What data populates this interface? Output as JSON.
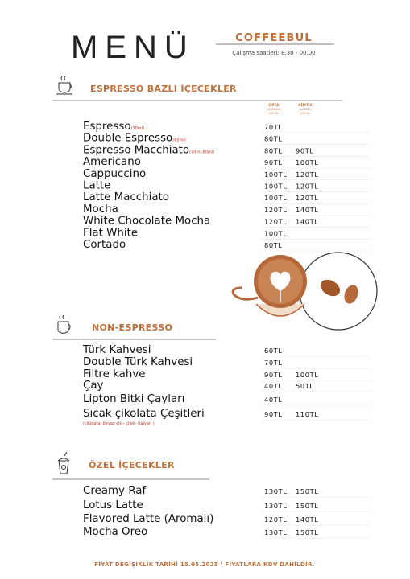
{
  "header": {
    "title": "MENÜ",
    "brand": "COFFEEBUL",
    "hours": "Çalışma saatleri: 8.30 - 00.00"
  },
  "sections": [
    {
      "title": "ESPRESSO BAZLI İÇECEKLER",
      "sizes": [
        {
          "label": "ORTA",
          "sub": "(MEDIUM)",
          "volume": "250 ML"
        },
        {
          "label": "BÜYÜK",
          "sub": "(LARGE)",
          "volume": "470 ML"
        }
      ],
      "items": [
        {
          "name": "Espresso",
          "note": "(30ml)",
          "prices": [
            "70TL"
          ]
        },
        {
          "name": "Double Espresso",
          "note": "(60ml)",
          "prices": [
            "80TL"
          ]
        },
        {
          "name": "Espresso Macchiato",
          "note": "(40ml-80ml)",
          "prices": [
            "80TL",
            "90TL"
          ]
        },
        {
          "name": "Americano",
          "prices": [
            "90TL",
            "100TL"
          ]
        },
        {
          "name": "Cappuccino",
          "prices": [
            "100TL",
            "120TL"
          ]
        },
        {
          "name": "Latte",
          "prices": [
            "100TL",
            "120TL"
          ]
        },
        {
          "name": "Latte Macchiato",
          "prices": [
            "100TL",
            "120TL"
          ]
        },
        {
          "name": "Mocha",
          "prices": [
            "120TL",
            "140TL"
          ]
        },
        {
          "name": "White Chocolate Mocha",
          "prices": [
            "120TL",
            "140TL"
          ]
        },
        {
          "name": "Flat White",
          "prices": [
            "100TL"
          ]
        },
        {
          "name": "Cortado",
          "prices": [
            "80TL"
          ]
        }
      ]
    },
    {
      "title": "NON-ESPRESSO",
      "items": [
        {
          "name": "Türk Kahvesi",
          "prices": [
            "60TL"
          ]
        },
        {
          "name": "Double Türk Kahvesi",
          "prices": [
            "70TL"
          ]
        },
        {
          "name": "Filtre kahve",
          "prices": [
            "90TL",
            "100TL"
          ]
        },
        {
          "name": "Çay",
          "prices": [
            "40TL",
            "50TL"
          ]
        },
        {
          "name": "Lipton Bitki Çayları",
          "prices": [
            "40TL"
          ]
        },
        {
          "name": "Sıcak çikolata Çeşitleri",
          "detail": "(çikolata- beyaz çik.- çilek- italyan )",
          "prices": [
            "90TL",
            "110TL"
          ]
        }
      ]
    },
    {
      "title": "ÖZEL İÇECEKLER",
      "items": [
        {
          "name": "Creamy Raf",
          "prices": [
            "130TL",
            "150TL"
          ]
        },
        {
          "name": "Lotus Latte",
          "prices": [
            "130TL",
            "150TL"
          ]
        },
        {
          "name": "Flavored Latte (Aromalı)",
          "prices": [
            "120TL",
            "140TL"
          ]
        },
        {
          "name": "Mocha Oreo",
          "prices": [
            "130TL",
            "150TL"
          ]
        }
      ]
    }
  ],
  "footer": "FİYAT DEĞİŞİKLİK TARİHİ 15.05.2025 \\ FİYATLARA KDV DAHİLDİR."
}
